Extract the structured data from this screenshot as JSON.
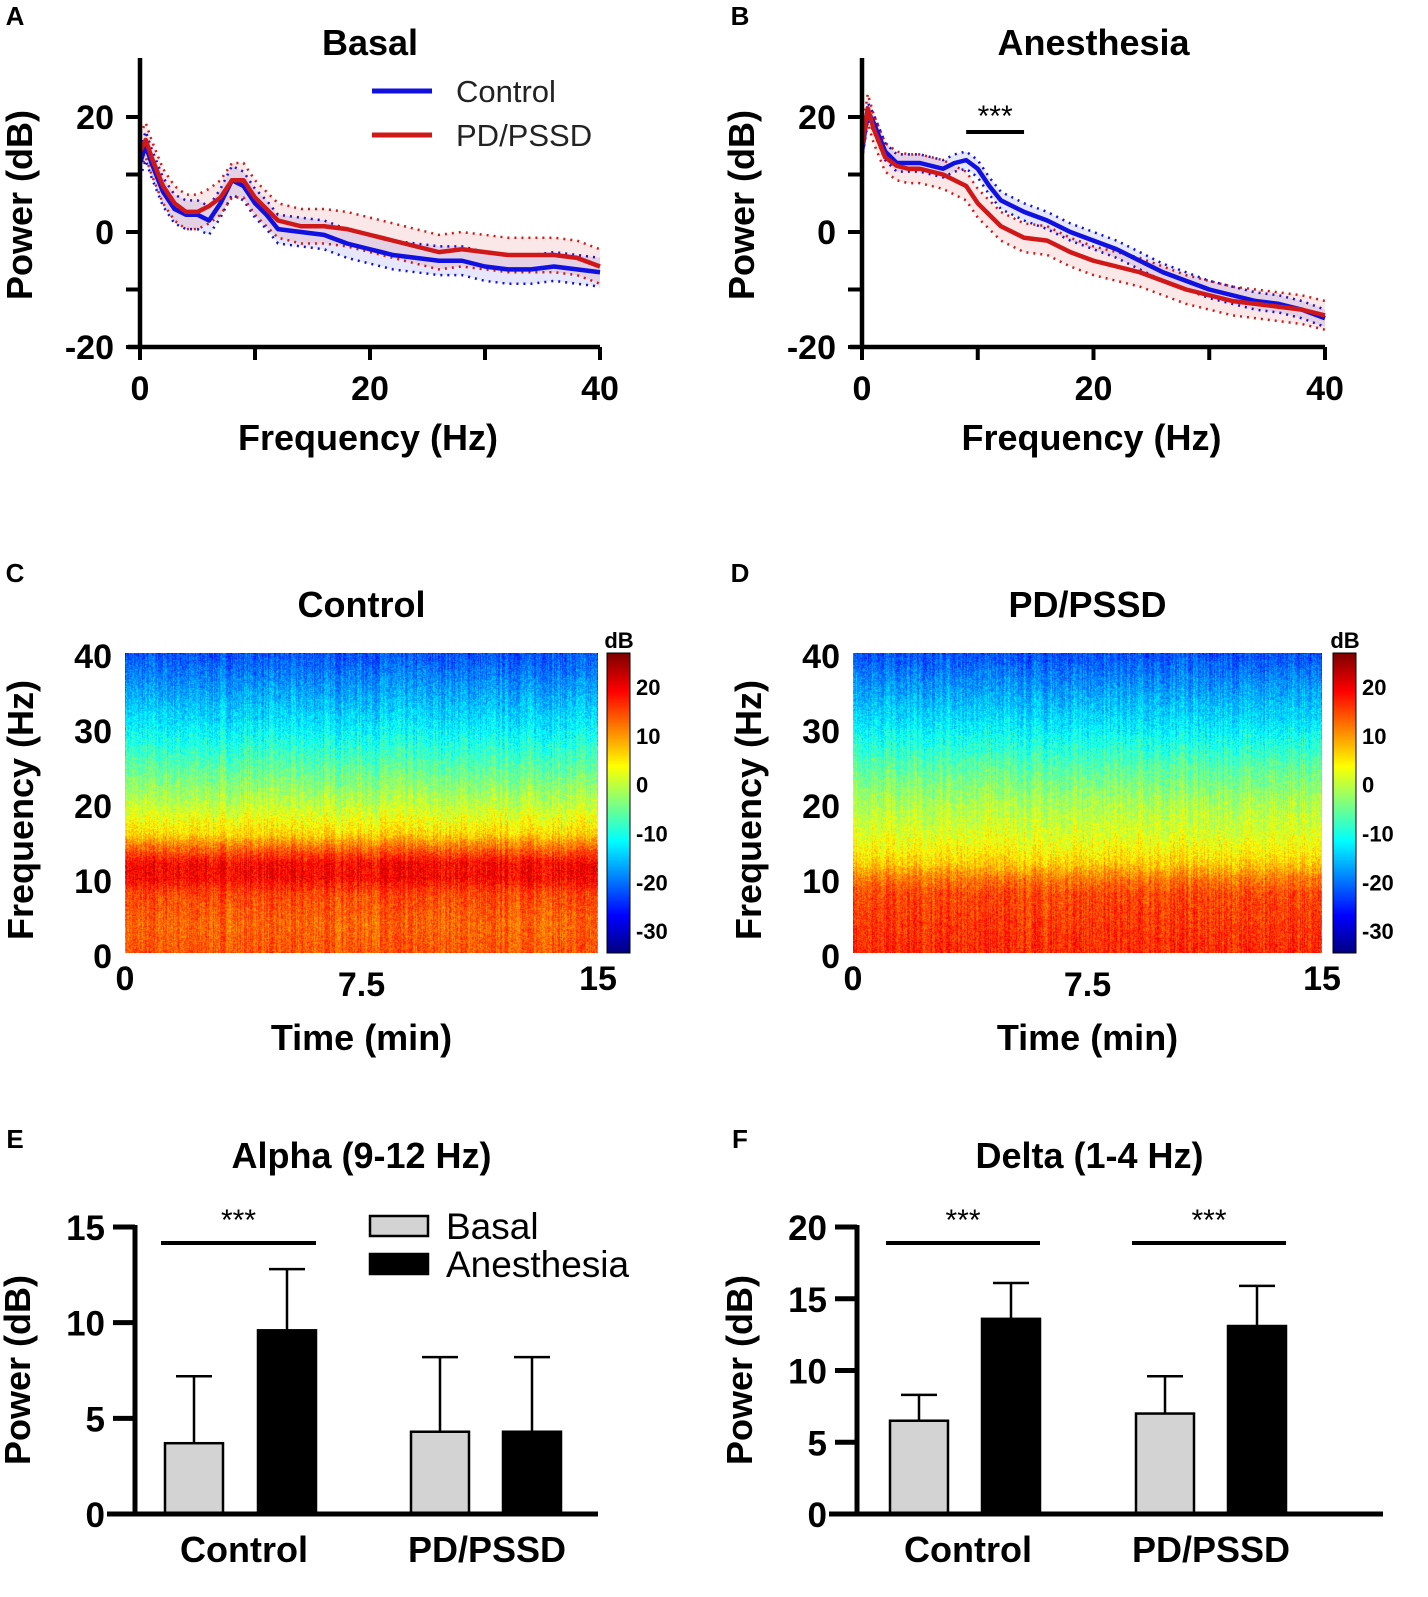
{
  "panel_letters": [
    "A",
    "B",
    "C",
    "D",
    "E",
    "F"
  ],
  "chart_data": [
    {
      "panel": "A",
      "type": "line",
      "title": "Basal",
      "xlabel": "Frequency (Hz)",
      "ylabel": "Power (dB)",
      "xlim": [
        0,
        40
      ],
      "ylim": [
        -20,
        30
      ],
      "xticks": [
        "0",
        "20",
        "40"
      ],
      "yticks": [
        "20",
        "0",
        "-20"
      ],
      "legend_position": "top-right",
      "x": [
        0,
        0.5,
        1,
        2,
        3,
        4,
        5,
        6,
        7,
        8,
        9,
        10,
        11,
        12,
        14,
        16,
        18,
        20,
        22,
        24,
        26,
        28,
        30,
        32,
        34,
        36,
        38,
        40
      ],
      "series": [
        {
          "name": "Control",
          "color": "#1010e0",
          "band": 2.5,
          "values": [
            12,
            15,
            12,
            7,
            4,
            3,
            3,
            2,
            5,
            9,
            8,
            5,
            3,
            0.5,
            0,
            -0.5,
            -2,
            -3,
            -4,
            -4.5,
            -5,
            -5,
            -6,
            -6.5,
            -6.5,
            -6,
            -6.5,
            -7
          ]
        },
        {
          "name": "PD/PSSD",
          "color": "#d01818",
          "band": 3,
          "values": [
            14,
            16,
            13,
            8,
            5,
            3.5,
            3.5,
            4.5,
            6,
            9,
            9,
            6,
            4,
            2,
            1,
            1,
            0.5,
            -0.5,
            -1.5,
            -2.5,
            -3.5,
            -3,
            -3.5,
            -4,
            -4,
            -4,
            -4.5,
            -6
          ]
        }
      ]
    },
    {
      "panel": "B",
      "type": "line",
      "title": "Anesthesia",
      "xlabel": "Frequency (Hz)",
      "ylabel": "Power (dB)",
      "xlim": [
        0,
        40
      ],
      "ylim": [
        -20,
        30
      ],
      "xticks": [
        "0",
        "20",
        "40"
      ],
      "yticks": [
        "20",
        "0",
        "-20"
      ],
      "annotation": {
        "text": "***",
        "x_range": [
          9,
          14
        ]
      },
      "x": [
        0,
        0.5,
        1,
        2,
        3,
        4,
        5,
        6,
        7,
        8,
        9,
        10,
        11,
        12,
        14,
        16,
        18,
        20,
        22,
        24,
        26,
        28,
        30,
        32,
        34,
        36,
        38,
        40
      ],
      "series": [
        {
          "name": "Control",
          "color": "#1010e0",
          "band": 1.5,
          "values": [
            14,
            21,
            19,
            14,
            12,
            12,
            12,
            11.5,
            11,
            12,
            12.5,
            11,
            8,
            5.5,
            3.5,
            2,
            0,
            -1.5,
            -3,
            -5,
            -7,
            -8.5,
            -10,
            -11,
            -12,
            -12.5,
            -13.5,
            -15
          ]
        },
        {
          "name": "PD/PSSD",
          "color": "#d01818",
          "band": 2.5,
          "values": [
            15,
            21.5,
            18,
            13,
            11.5,
            11,
            11,
            10.5,
            10,
            9,
            8,
            5,
            3,
            1,
            -1,
            -1.5,
            -3.5,
            -5,
            -6,
            -7,
            -8.5,
            -10,
            -11,
            -12,
            -12.5,
            -13,
            -13.5,
            -14.5
          ]
        }
      ]
    },
    {
      "panel": "C",
      "type": "heatmap",
      "title": "Control",
      "xlabel": "Time (min)",
      "ylabel": "Frequency (Hz)",
      "xlim": [
        0,
        15
      ],
      "ylim": [
        0,
        40
      ],
      "xticks": [
        "0",
        "7.5",
        "15"
      ],
      "yticks": [
        "40",
        "30",
        "20",
        "10",
        "0"
      ],
      "colorbar": {
        "label": "dB",
        "ticks": [
          "20",
          "10",
          "0",
          "-10",
          "-20",
          "-30"
        ],
        "range": [
          -34.5,
          27
        ],
        "colormap": "jet"
      },
      "profile": {
        "freq_hz": [
          0,
          4,
          8,
          10,
          12,
          14,
          16,
          20,
          25,
          30,
          35,
          40
        ],
        "power_db": [
          14,
          13,
          15,
          19,
          19,
          13,
          6,
          0,
          -6,
          -12,
          -17,
          -22
        ]
      }
    },
    {
      "panel": "D",
      "type": "heatmap",
      "title": "PD/PSSD",
      "xlabel": "Time (min)",
      "ylabel": "Frequency (Hz)",
      "xlim": [
        0,
        15
      ],
      "ylim": [
        0,
        40
      ],
      "xticks": [
        "0",
        "7.5",
        "15"
      ],
      "yticks": [
        "40",
        "30",
        "20",
        "10",
        "0"
      ],
      "colorbar": {
        "label": "dB",
        "ticks": [
          "20",
          "10",
          "0",
          "-10",
          "-20",
          "-30"
        ],
        "range": [
          -34.5,
          27
        ],
        "colormap": "jet"
      },
      "profile": {
        "freq_hz": [
          0,
          4,
          8,
          10,
          12,
          14,
          16,
          20,
          25,
          30,
          35,
          40
        ],
        "power_db": [
          17,
          16,
          15,
          12,
          7,
          4,
          2,
          -1,
          -6,
          -12,
          -17,
          -22
        ]
      }
    },
    {
      "panel": "E",
      "type": "bar",
      "title": "Alpha (9-12 Hz)",
      "ylabel": "Power (dB)",
      "ylim": [
        0,
        15
      ],
      "yticks": [
        "15",
        "10",
        "5",
        "0"
      ],
      "categories": [
        "Control",
        "PD/PSSD"
      ],
      "legend_position": "top-right",
      "series": [
        {
          "name": "Basal",
          "color": "#d3d3d3",
          "values": [
            3.7,
            4.3
          ],
          "error_upper": [
            7.2,
            8.2
          ]
        },
        {
          "name": "Anesthesia",
          "color": "#000000",
          "values": [
            9.6,
            4.3
          ],
          "error_upper": [
            12.8,
            8.2
          ]
        }
      ],
      "significance": [
        {
          "category": "Control",
          "text": "***"
        }
      ]
    },
    {
      "panel": "F",
      "type": "bar",
      "title": "Delta (1-4 Hz)",
      "ylabel": "Power (dB)",
      "ylim": [
        0,
        20
      ],
      "yticks": [
        "20",
        "15",
        "10",
        "5",
        "0"
      ],
      "categories": [
        "Control",
        "PD/PSSD"
      ],
      "series": [
        {
          "name": "Basal",
          "color": "#d3d3d3",
          "values": [
            6.5,
            7.0
          ],
          "error_upper": [
            8.3,
            9.6
          ]
        },
        {
          "name": "Anesthesia",
          "color": "#000000",
          "values": [
            13.6,
            13.1
          ],
          "error_upper": [
            16.1,
            15.9
          ]
        }
      ],
      "significance": [
        {
          "category": "Control",
          "text": "***"
        },
        {
          "category": "PD/PSSD",
          "text": "***"
        }
      ]
    }
  ]
}
